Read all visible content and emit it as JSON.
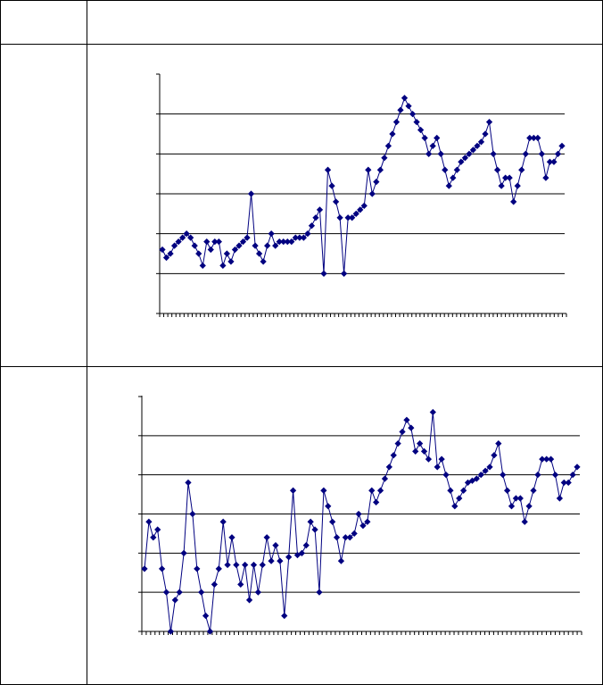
{
  "table": {
    "header": {
      "label_cell": "",
      "content_cell": ""
    },
    "rows": [
      {
        "label": ""
      },
      {
        "label": ""
      }
    ]
  },
  "colors": {
    "series": "#000080",
    "grid": "#000000",
    "border": "#000000"
  },
  "chart_data": [
    {
      "type": "line",
      "title": "",
      "xlabel": "",
      "ylabel": "",
      "grid": true,
      "legend": "none",
      "marker": "diamond",
      "ylim": [
        0,
        6
      ],
      "series": [
        {
          "values": [
            1.6,
            1.4,
            1.5,
            1.7,
            1.8,
            1.9,
            2.0,
            1.9,
            1.7,
            1.5,
            1.2,
            1.8,
            1.6,
            1.8,
            1.8,
            1.2,
            1.5,
            1.3,
            1.6,
            1.7,
            1.8,
            1.9,
            3.0,
            1.7,
            1.5,
            1.3,
            1.7,
            2.0,
            1.7,
            1.8,
            1.8,
            1.8,
            1.8,
            1.9,
            1.9,
            1.9,
            2.0,
            2.2,
            2.4,
            2.6,
            1.0,
            3.6,
            3.2,
            2.8,
            2.4,
            1.0,
            2.4,
            2.4,
            2.5,
            2.6,
            2.7,
            3.6,
            3.0,
            3.3,
            3.6,
            3.9,
            4.2,
            4.5,
            4.8,
            5.1,
            5.4,
            5.2,
            5.0,
            4.8,
            4.6,
            4.4,
            4.0,
            4.2,
            4.4,
            4.0,
            3.6,
            3.2,
            3.4,
            3.6,
            3.8,
            3.9,
            4.0,
            4.1,
            4.2,
            4.3,
            4.5,
            4.8,
            4.0,
            3.6,
            3.2,
            3.4,
            3.4,
            2.8,
            3.2,
            3.6,
            4.0,
            4.4,
            4.4,
            4.4,
            4.0,
            3.4,
            3.8,
            3.8,
            4.0,
            4.2
          ]
        }
      ]
    },
    {
      "type": "line",
      "title": "",
      "xlabel": "",
      "ylabel": "",
      "grid": true,
      "legend": "none",
      "marker": "diamond",
      "ylim": [
        0,
        6
      ],
      "series": [
        {
          "values": [
            1.6,
            2.8,
            2.4,
            2.6,
            1.6,
            1.0,
            0.0,
            0.8,
            1.0,
            2.0,
            3.8,
            3.0,
            1.6,
            1.0,
            0.4,
            0.0,
            1.2,
            1.6,
            2.8,
            1.7,
            2.4,
            1.7,
            1.2,
            1.7,
            0.8,
            1.7,
            1.0,
            1.7,
            2.4,
            1.8,
            2.2,
            1.8,
            0.4,
            1.9,
            3.6,
            1.95,
            2.0,
            2.2,
            2.8,
            2.6,
            1.0,
            3.6,
            3.2,
            2.8,
            2.4,
            1.8,
            2.4,
            2.4,
            2.5,
            3.0,
            2.7,
            2.8,
            3.6,
            3.3,
            3.6,
            3.9,
            4.2,
            4.5,
            4.8,
            5.1,
            5.4,
            5.2,
            4.6,
            4.8,
            4.6,
            4.4,
            5.6,
            4.2,
            4.4,
            4.0,
            3.6,
            3.2,
            3.4,
            3.6,
            3.8,
            3.85,
            3.9,
            4.0,
            4.1,
            4.2,
            4.5,
            4.8,
            4.0,
            3.6,
            3.2,
            3.4,
            3.4,
            2.8,
            3.2,
            3.6,
            4.0,
            4.4,
            4.4,
            4.4,
            4.0,
            3.4,
            3.8,
            3.8,
            4.0,
            4.2
          ]
        }
      ]
    }
  ]
}
